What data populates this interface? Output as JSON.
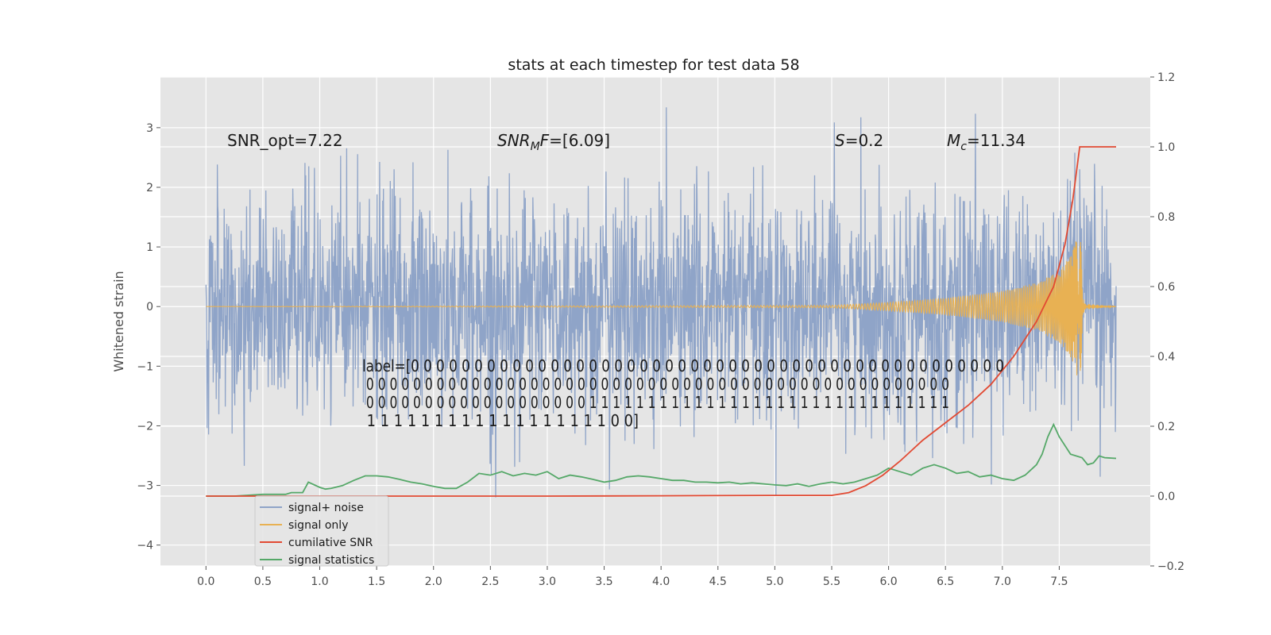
{
  "chart_data": {
    "type": "line",
    "title": "stats at each timestep for test data 58",
    "ylabel": "Whitened strain",
    "xlim": [
      -0.4,
      8.3
    ],
    "ylim": [
      -4.35,
      3.85
    ],
    "y2lim": [
      -0.2,
      1.2
    ],
    "x_ticks": [
      0.0,
      0.5,
      1.0,
      1.5,
      2.0,
      2.5,
      3.0,
      3.5,
      4.0,
      4.5,
      5.0,
      5.5,
      6.0,
      6.5,
      7.0,
      7.5
    ],
    "y_ticks": [
      3,
      2,
      1,
      0,
      -1,
      -2,
      -3,
      -4
    ],
    "y2_ticks": [
      1.2,
      1.0,
      0.8,
      0.6,
      0.4,
      0.2,
      0.0,
      -0.2
    ],
    "x_tick_labels": [
      "0.0",
      "0.5",
      "1.0",
      "1.5",
      "2.0",
      "2.5",
      "3.0",
      "3.5",
      "4.0",
      "4.5",
      "5.0",
      "5.5",
      "6.0",
      "6.5",
      "7.0",
      "7.5"
    ],
    "y_tick_labels": [
      "3",
      "2",
      "1",
      "0",
      "−1",
      "−2",
      "−3",
      "−4"
    ],
    "y2_tick_labels": [
      "1.2",
      "1.0",
      "0.8",
      "0.6",
      "0.4",
      "0.2",
      "0.0",
      "−0.2"
    ],
    "grid": true,
    "legend_position": "lower-left",
    "series": [
      {
        "name": "signal+ noise",
        "color": "#8fa4c8",
        "axis": "left",
        "kind": "noise",
        "x_range": [
          0.0,
          8.0
        ],
        "sigma": 1.0,
        "approx_range": [
          -3.2,
          3.4
        ]
      },
      {
        "name": "signal only",
        "color": "#e8b153",
        "axis": "left",
        "kind": "chirp",
        "x_range": [
          0.0,
          8.0
        ],
        "merger_x": 7.68,
        "envelope": [
          [
            0.0,
            0.0
          ],
          [
            5.5,
            0.02
          ],
          [
            6.0,
            0.07
          ],
          [
            6.5,
            0.14
          ],
          [
            7.0,
            0.26
          ],
          [
            7.3,
            0.4
          ],
          [
            7.5,
            0.6
          ],
          [
            7.6,
            0.85
          ],
          [
            7.68,
            1.35
          ],
          [
            7.72,
            0.05
          ],
          [
            8.0,
            0.0
          ]
        ]
      },
      {
        "name": "cumilative SNR",
        "color": "#e24a33",
        "axis": "right",
        "x": [
          0.0,
          1.0,
          2.0,
          3.0,
          4.0,
          5.0,
          5.5,
          5.65,
          5.8,
          5.95,
          6.1,
          6.3,
          6.5,
          6.7,
          6.9,
          7.1,
          7.3,
          7.45,
          7.55,
          7.62,
          7.68,
          8.0
        ],
        "y": [
          0.0,
          0.0,
          0.0,
          0.0,
          0.001,
          0.002,
          0.002,
          0.01,
          0.03,
          0.06,
          0.1,
          0.16,
          0.21,
          0.26,
          0.32,
          0.4,
          0.5,
          0.6,
          0.72,
          0.85,
          1.0,
          1.0
        ]
      },
      {
        "name": "signal statistics",
        "color": "#55a868",
        "axis": "right",
        "x": [
          0.0,
          0.25,
          0.5,
          0.7,
          0.75,
          0.85,
          0.9,
          1.0,
          1.05,
          1.1,
          1.2,
          1.3,
          1.4,
          1.5,
          1.6,
          1.7,
          1.8,
          1.9,
          2.0,
          2.1,
          2.2,
          2.3,
          2.4,
          2.5,
          2.6,
          2.7,
          2.8,
          2.9,
          3.0,
          3.1,
          3.2,
          3.3,
          3.4,
          3.5,
          3.6,
          3.7,
          3.8,
          3.9,
          4.0,
          4.1,
          4.2,
          4.3,
          4.4,
          4.5,
          4.6,
          4.7,
          4.8,
          4.9,
          5.0,
          5.1,
          5.2,
          5.3,
          5.4,
          5.5,
          5.6,
          5.7,
          5.8,
          5.9,
          6.0,
          6.1,
          6.2,
          6.3,
          6.4,
          6.5,
          6.6,
          6.7,
          6.8,
          6.9,
          7.0,
          7.1,
          7.2,
          7.3,
          7.35,
          7.4,
          7.45,
          7.5,
          7.6,
          7.7,
          7.75,
          7.8,
          7.85,
          7.9,
          8.0
        ],
        "y": [
          0.0,
          0.0,
          0.005,
          0.005,
          0.01,
          0.01,
          0.04,
          0.025,
          0.02,
          0.022,
          0.03,
          0.045,
          0.058,
          0.058,
          0.055,
          0.048,
          0.04,
          0.035,
          0.028,
          0.022,
          0.022,
          0.04,
          0.065,
          0.06,
          0.07,
          0.058,
          0.065,
          0.06,
          0.07,
          0.05,
          0.06,
          0.055,
          0.048,
          0.04,
          0.045,
          0.055,
          0.058,
          0.055,
          0.05,
          0.045,
          0.045,
          0.04,
          0.04,
          0.038,
          0.04,
          0.035,
          0.038,
          0.035,
          0.032,
          0.03,
          0.035,
          0.028,
          0.035,
          0.04,
          0.035,
          0.04,
          0.05,
          0.06,
          0.08,
          0.07,
          0.06,
          0.08,
          0.09,
          0.08,
          0.065,
          0.07,
          0.055,
          0.06,
          0.05,
          0.045,
          0.06,
          0.09,
          0.12,
          0.17,
          0.205,
          0.17,
          0.12,
          0.11,
          0.09,
          0.095,
          0.115,
          0.11,
          0.108
        ]
      }
    ],
    "annotations": {
      "snr_opt": "SNR_opt=7.22",
      "snr_mf_sym": "SNR",
      "snr_mf_sub": "M",
      "snr_mf_sym2": "F",
      "snr_mf_val": "=[6.09]",
      "s_sym": "S",
      "s_val": "=0.2",
      "mc_sym": "M",
      "mc_sub": "c",
      "mc_val": "=11.34",
      "label_lines": [
        "label=[0 0 0 0 0 0 0 0 0 0 0 0 0 0 0 0 0 0 0 0 0 0 0 0 0 0 0 0 0 0 0 0 0 0 0 0 0 0 0 0 0 0 0 0 0 0 0",
        " 0 0 0 0 0 0 0 0 0 0 0 0 0 0 0 0 0 0 0 0 0 0 0 0 0 0 0 0 0 0 0 0 0 0 0 0 0 0 0 0 0 0 0 0 0 0 0 0 0 0",
        " 0 0 0 0 0 0 0 0 0 0 0 0 0 0 0 0 0 0 0 1 1 1 1 1 1 1 1 1 1 1 1 1 1 1 1 1 1 1 1 1 1 1 1 1 1 1 1 1 1 1",
        " 1 1 1 1 1 1 1 1 1 1 1 1 1 1 1 1 1 1 0 0]"
      ]
    }
  }
}
